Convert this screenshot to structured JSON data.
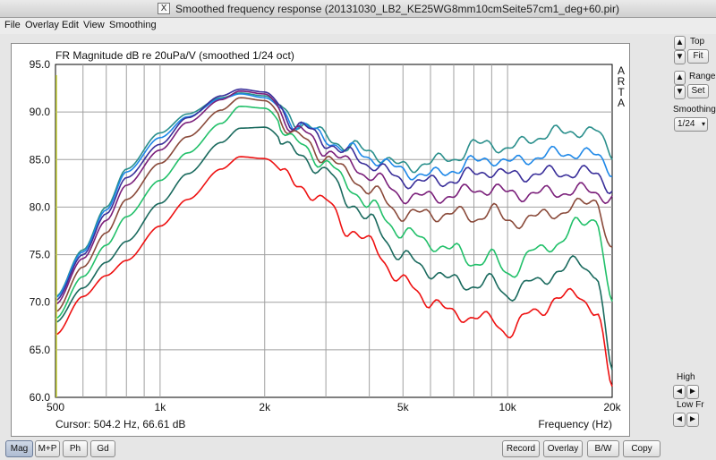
{
  "window": {
    "title": "Smoothed frequency response (20131030_LB2_KE25WG8mm10cmSeite57cm1_deg+60.pir)"
  },
  "menu": [
    "File",
    "Overlay",
    "Edit",
    "View",
    "Smoothing"
  ],
  "right_panel": {
    "top_label": "Top",
    "fit_label": "Fit",
    "range_label": "Range",
    "set_label": "Set",
    "smoothing_label": "Smoothing",
    "smoothing_value": "1/24",
    "high_label": "High",
    "lowfr_label": "Low Fr",
    "up_arrow": "▲",
    "down_arrow": "▼",
    "left_arrow": "◄",
    "right_arrow": "►"
  },
  "bottom_buttons": {
    "mag": "Mag",
    "mp": "M+P",
    "ph": "Ph",
    "gd": "Gd",
    "record": "Record",
    "overlay": "Overlay",
    "bw": "B/W",
    "copy": "Copy"
  },
  "colors": {
    "series_0": "#2a8f8c",
    "series_1": "#1e88e8",
    "series_2": "#3a2f9a",
    "series_3": "#7a1f7a",
    "series_4": "#8a4a3a",
    "series_5": "#22c06a",
    "series_6": "#1a6a5e",
    "series_7": "#ee1111",
    "grid": "#a0a0a0",
    "axis_text": "#111111"
  },
  "chart_data": {
    "type": "line",
    "title": "FR Magnitude dB re 20uPa/V (smoothed 1/24 oct)",
    "side_label": [
      "A",
      "R",
      "T",
      "A"
    ],
    "xlabel": "Frequency (Hz)",
    "xscale": "log",
    "xlim": [
      500,
      20000
    ],
    "ylim": [
      60,
      95
    ],
    "x_tick_labels": [
      {
        "v": 500,
        "t": "500"
      },
      {
        "v": 1000,
        "t": "1k"
      },
      {
        "v": 2000,
        "t": "2k"
      },
      {
        "v": 5000,
        "t": "5k"
      },
      {
        "v": 10000,
        "t": "10k"
      },
      {
        "v": 20000,
        "t": "20k"
      }
    ],
    "y_tick_labels": [
      "95.0",
      "90.0",
      "85.0",
      "80.0",
      "75.0",
      "70.0",
      "65.0",
      "60.0"
    ],
    "cursor_text": "Cursor: 504.2 Hz, 66.61 dB",
    "grid": true,
    "x": [
      500,
      600,
      700,
      800,
      1000,
      1200,
      1500,
      1700,
      2000,
      2500,
      3000,
      3500,
      4000,
      5000,
      6000,
      7000,
      8000,
      9000,
      10000,
      12000,
      14000,
      16000,
      18000,
      20000
    ],
    "series": [
      {
        "values": [
          70.6,
          75.5,
          80.0,
          84.0,
          87.8,
          89.8,
          91.5,
          92.0,
          91.7,
          89.0,
          87.5,
          86.3,
          85.9,
          84.2,
          84.7,
          85.2,
          86.4,
          86.8,
          86.0,
          87.4,
          87.8,
          88.1,
          87.8,
          85.7
        ]
      },
      {
        "values": [
          70.5,
          75.3,
          79.7,
          83.7,
          87.3,
          89.5,
          91.4,
          91.9,
          91.5,
          88.8,
          87.2,
          86.0,
          85.3,
          83.8,
          83.3,
          84.0,
          84.7,
          85.2,
          84.6,
          85.3,
          85.6,
          85.8,
          85.3,
          84.0
        ]
      },
      {
        "values": [
          70.2,
          75.0,
          79.3,
          83.1,
          86.6,
          89.4,
          91.7,
          92.4,
          92.1,
          88.6,
          86.9,
          85.5,
          84.6,
          82.8,
          82.6,
          82.9,
          83.5,
          83.9,
          83.3,
          83.5,
          83.6,
          83.7,
          83.4,
          82.1
        ]
      },
      {
        "values": [
          69.8,
          74.6,
          78.6,
          82.3,
          86.0,
          88.9,
          91.3,
          92.2,
          91.9,
          88.0,
          86.1,
          84.5,
          83.4,
          81.2,
          81.0,
          81.3,
          81.8,
          82.0,
          81.4,
          81.4,
          81.6,
          81.8,
          81.5,
          81.0
        ]
      },
      {
        "values": [
          69.0,
          73.7,
          77.3,
          80.8,
          84.6,
          87.4,
          90.2,
          91.5,
          91.2,
          87.3,
          85.3,
          83.4,
          81.8,
          79.3,
          79.2,
          79.4,
          78.8,
          79.8,
          78.4,
          78.9,
          79.5,
          80.1,
          80.9,
          75.2
        ]
      },
      {
        "values": [
          68.3,
          72.7,
          76.0,
          79.0,
          82.8,
          85.7,
          88.8,
          90.6,
          90.4,
          86.6,
          84.6,
          82.3,
          80.1,
          77.4,
          76.2,
          75.5,
          74.2,
          74.8,
          73.0,
          75.3,
          76.3,
          78.2,
          79.0,
          69.5
        ]
      },
      {
        "values": [
          67.9,
          71.5,
          74.2,
          76.4,
          80.4,
          83.5,
          86.8,
          88.3,
          88.4,
          85.5,
          83.7,
          80.7,
          78.5,
          74.8,
          73.3,
          72.2,
          71.8,
          72.2,
          70.8,
          72.1,
          73.2,
          74.3,
          73.0,
          62.6
        ]
      },
      {
        "values": [
          66.6,
          70.6,
          72.8,
          74.4,
          78.0,
          80.8,
          84.0,
          85.3,
          85.1,
          82.3,
          80.5,
          77.6,
          76.2,
          72.1,
          70.2,
          68.7,
          68.5,
          68.1,
          66.9,
          69.0,
          70.3,
          71.0,
          68.9,
          61.2
        ]
      }
    ]
  }
}
